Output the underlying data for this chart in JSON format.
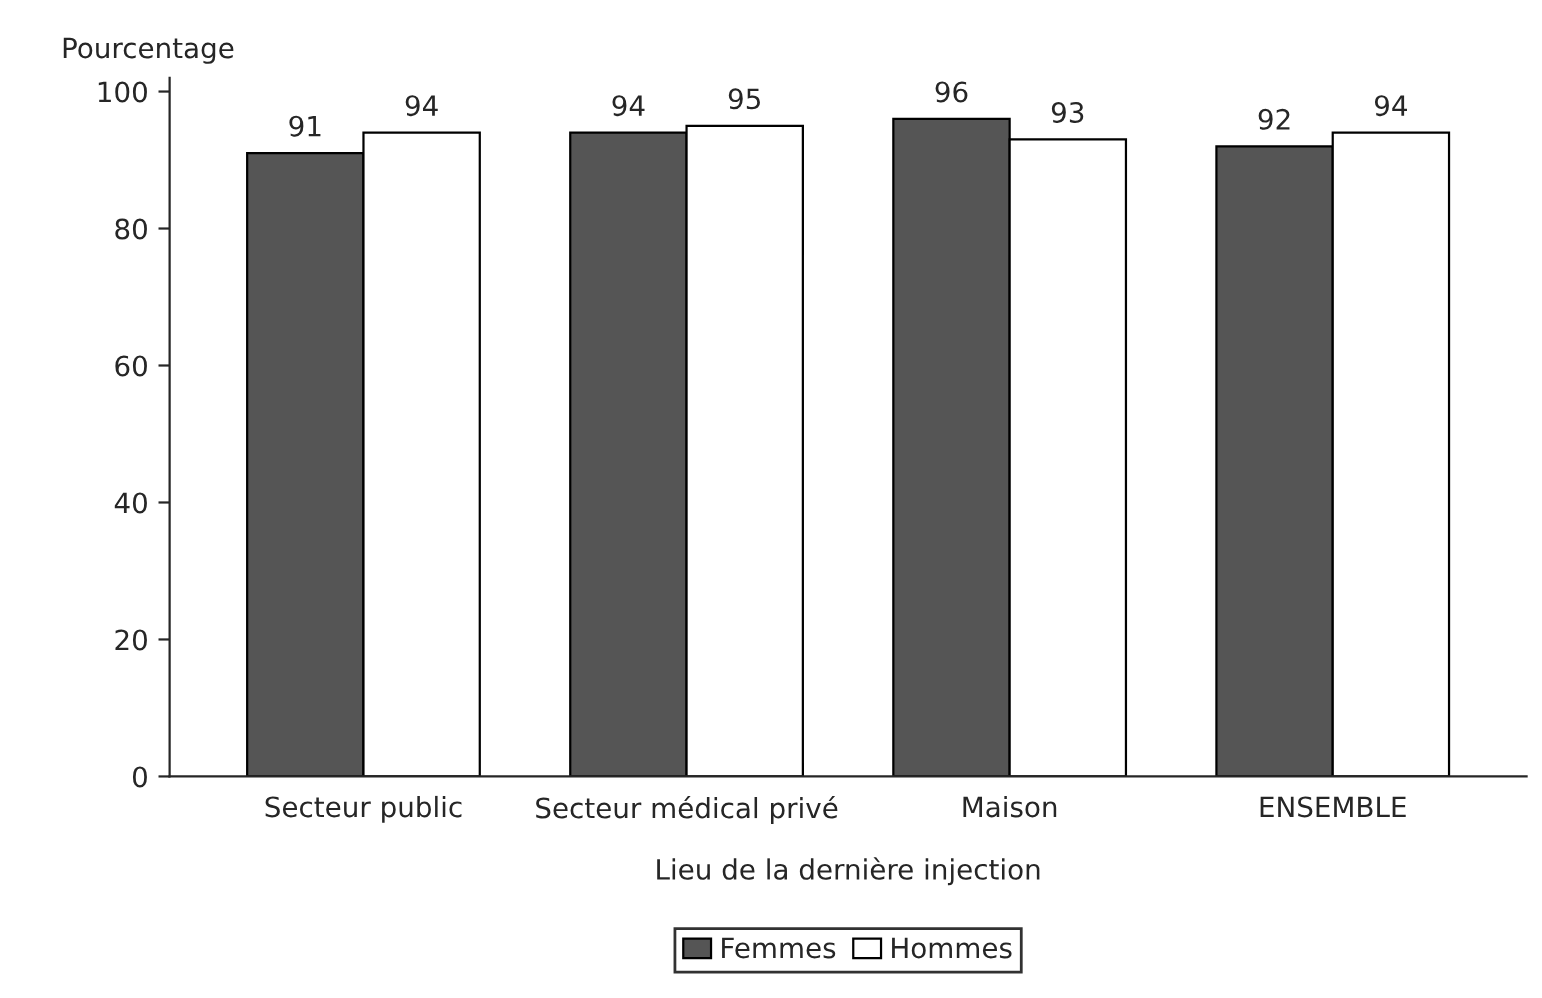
{
  "chart_data": {
    "type": "bar",
    "ylabel": "Pourcentage",
    "xlabel": "Lieu de la dernière injection",
    "categories": [
      "Secteur public",
      "Secteur médical privé",
      "Maison",
      "ENSEMBLE"
    ],
    "series": [
      {
        "name": "Femmes",
        "color": "#555555",
        "values": [
          91,
          94,
          96,
          92
        ]
      },
      {
        "name": "Hommes",
        "color": "#ffffff",
        "values": [
          94,
          95,
          93,
          94
        ]
      }
    ],
    "ylim": [
      0,
      102
    ],
    "yticks": [
      0,
      20,
      40,
      60,
      80,
      100
    ],
    "data_labels": true,
    "legend": "bottom",
    "grid": false
  }
}
